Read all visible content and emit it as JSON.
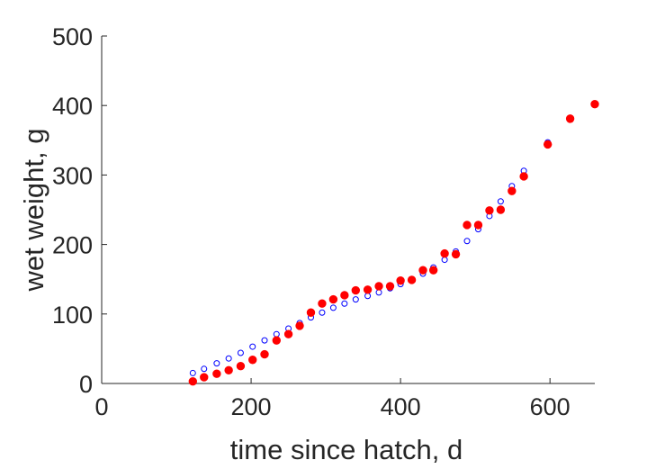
{
  "chart_data": {
    "type": "scatter",
    "xlabel": "time since hatch, d",
    "ylabel": "wet weight, g",
    "xlim": [
      0,
      660
    ],
    "ylim": [
      0,
      500
    ],
    "xticks": [
      0,
      200,
      400,
      600
    ],
    "yticks": [
      0,
      100,
      200,
      300,
      400,
      500
    ],
    "grid": false,
    "legend": "none",
    "series": [
      {
        "marker": "open-circle",
        "color": "#0000ff",
        "points": [
          [
            122,
            15
          ],
          [
            137,
            21
          ],
          [
            154,
            29
          ],
          [
            170,
            36
          ],
          [
            186,
            44
          ],
          [
            202,
            53
          ],
          [
            218,
            62
          ],
          [
            234,
            71
          ],
          [
            250,
            79
          ],
          [
            265,
            87
          ],
          [
            280,
            95
          ],
          [
            295,
            102
          ],
          [
            310,
            109
          ],
          [
            325,
            115
          ],
          [
            340,
            121
          ],
          [
            356,
            126
          ],
          [
            371,
            131
          ],
          [
            386,
            137
          ],
          [
            400,
            143
          ],
          [
            415,
            150
          ],
          [
            430,
            158
          ],
          [
            444,
            167
          ],
          [
            459,
            178
          ],
          [
            474,
            190
          ],
          [
            489,
            205
          ],
          [
            504,
            222
          ],
          [
            519,
            241
          ],
          [
            534,
            262
          ],
          [
            549,
            284
          ],
          [
            565,
            306
          ],
          [
            597,
            347
          ],
          [
            627,
            380
          ]
        ]
      },
      {
        "marker": "filled-circle",
        "color": "#ff0000",
        "points": [
          [
            122,
            3
          ],
          [
            137,
            9
          ],
          [
            154,
            14
          ],
          [
            170,
            19
          ],
          [
            186,
            25
          ],
          [
            202,
            34
          ],
          [
            218,
            42
          ],
          [
            234,
            62
          ],
          [
            250,
            71
          ],
          [
            265,
            83
          ],
          [
            280,
            102
          ],
          [
            295,
            115
          ],
          [
            310,
            121
          ],
          [
            325,
            127
          ],
          [
            340,
            134
          ],
          [
            356,
            135
          ],
          [
            371,
            140
          ],
          [
            386,
            140
          ],
          [
            400,
            148
          ],
          [
            415,
            149
          ],
          [
            430,
            163
          ],
          [
            444,
            163
          ],
          [
            459,
            187
          ],
          [
            474,
            186
          ],
          [
            489,
            228
          ],
          [
            504,
            228
          ],
          [
            519,
            249
          ],
          [
            534,
            250
          ],
          [
            549,
            277
          ],
          [
            565,
            298
          ],
          [
            597,
            344
          ],
          [
            627,
            381
          ],
          [
            660,
            402
          ]
        ]
      }
    ]
  }
}
